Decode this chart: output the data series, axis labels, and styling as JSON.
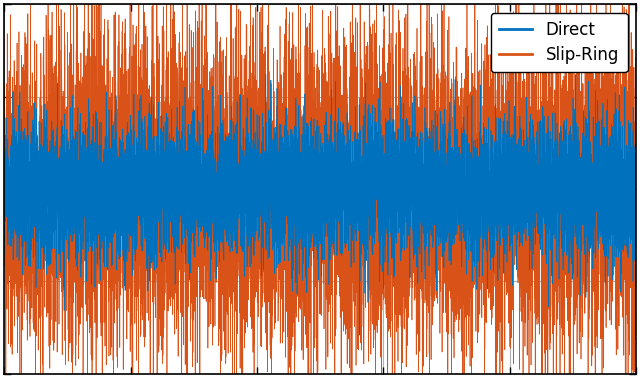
{
  "title": "",
  "xlabel": "",
  "ylabel": "",
  "line1_color": "#0072BD",
  "line2_color": "#D95319",
  "legend_labels": [
    "Direct",
    "Slip-Ring"
  ],
  "legend_loc": "upper right",
  "xlim": [
    0,
    1
  ],
  "ylim": [
    -1.0,
    1.0
  ],
  "n_points": 10000,
  "seed1": 42,
  "seed2": 7,
  "amplitude1": 0.18,
  "amplitude2": 0.42,
  "figsize": [
    6.4,
    3.78
  ],
  "dpi": 100,
  "grid_color": "#b0b0b0",
  "grid_linewidth": 0.8,
  "line_linewidth": 0.5,
  "background_color": "#ffffff",
  "xtick_positions": [
    0.0,
    0.2,
    0.4,
    0.6,
    0.8,
    1.0
  ],
  "ytick_positions": [
    -1.0,
    -0.5,
    0.0,
    0.5,
    1.0
  ],
  "legend_fontsize": 12,
  "spine_linewidth": 1.2
}
